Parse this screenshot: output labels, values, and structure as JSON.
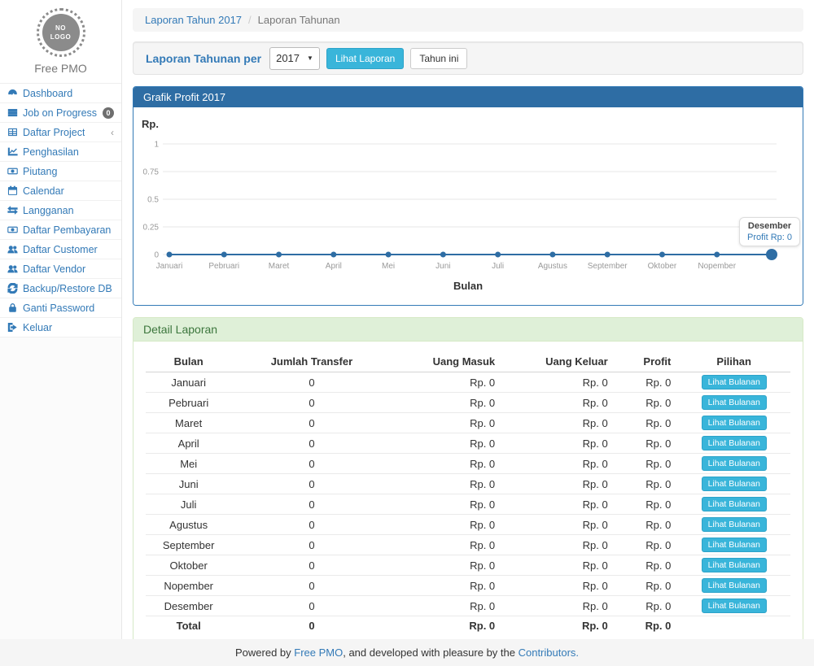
{
  "sidebar": {
    "logo_line1": "NO",
    "logo_line2": "LOGO",
    "brand": "Free PMO",
    "items": [
      {
        "label": "Dashboard",
        "icon": "tachometer-icon"
      },
      {
        "label": "Job on Progress",
        "icon": "list-icon",
        "badge": "0"
      },
      {
        "label": "Daftar Project",
        "icon": "table-icon",
        "chevron": "‹"
      },
      {
        "label": "Penghasilan",
        "icon": "line-chart-icon"
      },
      {
        "label": "Piutang",
        "icon": "money-icon"
      },
      {
        "label": "Calendar",
        "icon": "calendar-icon"
      },
      {
        "label": "Langganan",
        "icon": "exchange-icon"
      },
      {
        "label": "Daftar Pembayaran",
        "icon": "money-icon"
      },
      {
        "label": "Daftar Customer",
        "icon": "users-icon"
      },
      {
        "label": "Daftar Vendor",
        "icon": "users-icon"
      },
      {
        "label": "Backup/Restore DB",
        "icon": "refresh-icon"
      },
      {
        "label": "Ganti Password",
        "icon": "lock-icon"
      },
      {
        "label": "Keluar",
        "icon": "sign-out-icon"
      }
    ]
  },
  "breadcrumb": {
    "link": "Laporan Tahun 2017",
    "separator": "/",
    "current": "Laporan Tahunan"
  },
  "toolbar": {
    "label": "Laporan Tahunan per",
    "year_value": "2017",
    "view_button": "Lihat Laporan",
    "this_year_button": "Tahun ini"
  },
  "chart_panel": {
    "title": "Grafik Profit 2017",
    "y_axis_label": "Rp.",
    "x_axis_label": "Bulan",
    "tooltip": {
      "title": "Desember",
      "value": "Profit Rp: 0"
    }
  },
  "chart_data": {
    "type": "line",
    "title": "Grafik Profit 2017",
    "categories": [
      "Januari",
      "Pebruari",
      "Maret",
      "April",
      "Mei",
      "Juni",
      "Juli",
      "Agustus",
      "September",
      "Oktober",
      "Nopember",
      "Desember"
    ],
    "values": [
      0,
      0,
      0,
      0,
      0,
      0,
      0,
      0,
      0,
      0,
      0,
      0
    ],
    "x_tick_labels_visible": [
      "Januari",
      "Pebruari",
      "Maret",
      "April",
      "Mei",
      "Juni",
      "Juli",
      "Agustus",
      "September",
      "Oktober",
      "Nopember"
    ],
    "xlabel": "Bulan",
    "ylabel": "Rp.",
    "ylim": [
      0,
      1
    ],
    "y_ticks": [
      "1",
      "0.75",
      "0.5",
      "0.25",
      "0"
    ],
    "grid": true,
    "legend": false,
    "line_color": "#2e6da4",
    "highlighted_point": {
      "category": "Desember",
      "label": "Profit Rp: 0"
    }
  },
  "detail_panel": {
    "title": "Detail Laporan",
    "columns": [
      "Bulan",
      "Jumlah Transfer",
      "Uang Masuk",
      "Uang Keluar",
      "Profit",
      "Pilihan"
    ],
    "action_label": "Lihat Bulanan",
    "rows": [
      {
        "bulan": "Januari",
        "jumlah_transfer": "0",
        "uang_masuk": "Rp. 0",
        "uang_keluar": "Rp. 0",
        "profit": "Rp. 0"
      },
      {
        "bulan": "Pebruari",
        "jumlah_transfer": "0",
        "uang_masuk": "Rp. 0",
        "uang_keluar": "Rp. 0",
        "profit": "Rp. 0"
      },
      {
        "bulan": "Maret",
        "jumlah_transfer": "0",
        "uang_masuk": "Rp. 0",
        "uang_keluar": "Rp. 0",
        "profit": "Rp. 0"
      },
      {
        "bulan": "April",
        "jumlah_transfer": "0",
        "uang_masuk": "Rp. 0",
        "uang_keluar": "Rp. 0",
        "profit": "Rp. 0"
      },
      {
        "bulan": "Mei",
        "jumlah_transfer": "0",
        "uang_masuk": "Rp. 0",
        "uang_keluar": "Rp. 0",
        "profit": "Rp. 0"
      },
      {
        "bulan": "Juni",
        "jumlah_transfer": "0",
        "uang_masuk": "Rp. 0",
        "uang_keluar": "Rp. 0",
        "profit": "Rp. 0"
      },
      {
        "bulan": "Juli",
        "jumlah_transfer": "0",
        "uang_masuk": "Rp. 0",
        "uang_keluar": "Rp. 0",
        "profit": "Rp. 0"
      },
      {
        "bulan": "Agustus",
        "jumlah_transfer": "0",
        "uang_masuk": "Rp. 0",
        "uang_keluar": "Rp. 0",
        "profit": "Rp. 0"
      },
      {
        "bulan": "September",
        "jumlah_transfer": "0",
        "uang_masuk": "Rp. 0",
        "uang_keluar": "Rp. 0",
        "profit": "Rp. 0"
      },
      {
        "bulan": "Oktober",
        "jumlah_transfer": "0",
        "uang_masuk": "Rp. 0",
        "uang_keluar": "Rp. 0",
        "profit": "Rp. 0"
      },
      {
        "bulan": "Nopember",
        "jumlah_transfer": "0",
        "uang_masuk": "Rp. 0",
        "uang_keluar": "Rp. 0",
        "profit": "Rp. 0"
      },
      {
        "bulan": "Desember",
        "jumlah_transfer": "0",
        "uang_masuk": "Rp. 0",
        "uang_keluar": "Rp. 0",
        "profit": "Rp. 0"
      }
    ],
    "total": {
      "bulan": "Total",
      "jumlah_transfer": "0",
      "uang_masuk": "Rp. 0",
      "uang_keluar": "Rp. 0",
      "profit": "Rp. 0"
    }
  },
  "footer": {
    "prefix": "Powered by ",
    "link1": "Free PMO",
    "middle": ", and developed with pleasure by the ",
    "link2": "Contributors."
  },
  "colors": {
    "link_blue": "#337ab7",
    "panel_primary_header": "#2e6da4",
    "panel_success_bg": "#dff0d8",
    "panel_success_text": "#3c763d",
    "info_button": "#39b5da",
    "badge_gray": "#6e6e6e",
    "gridline": "#e7e7e7"
  }
}
